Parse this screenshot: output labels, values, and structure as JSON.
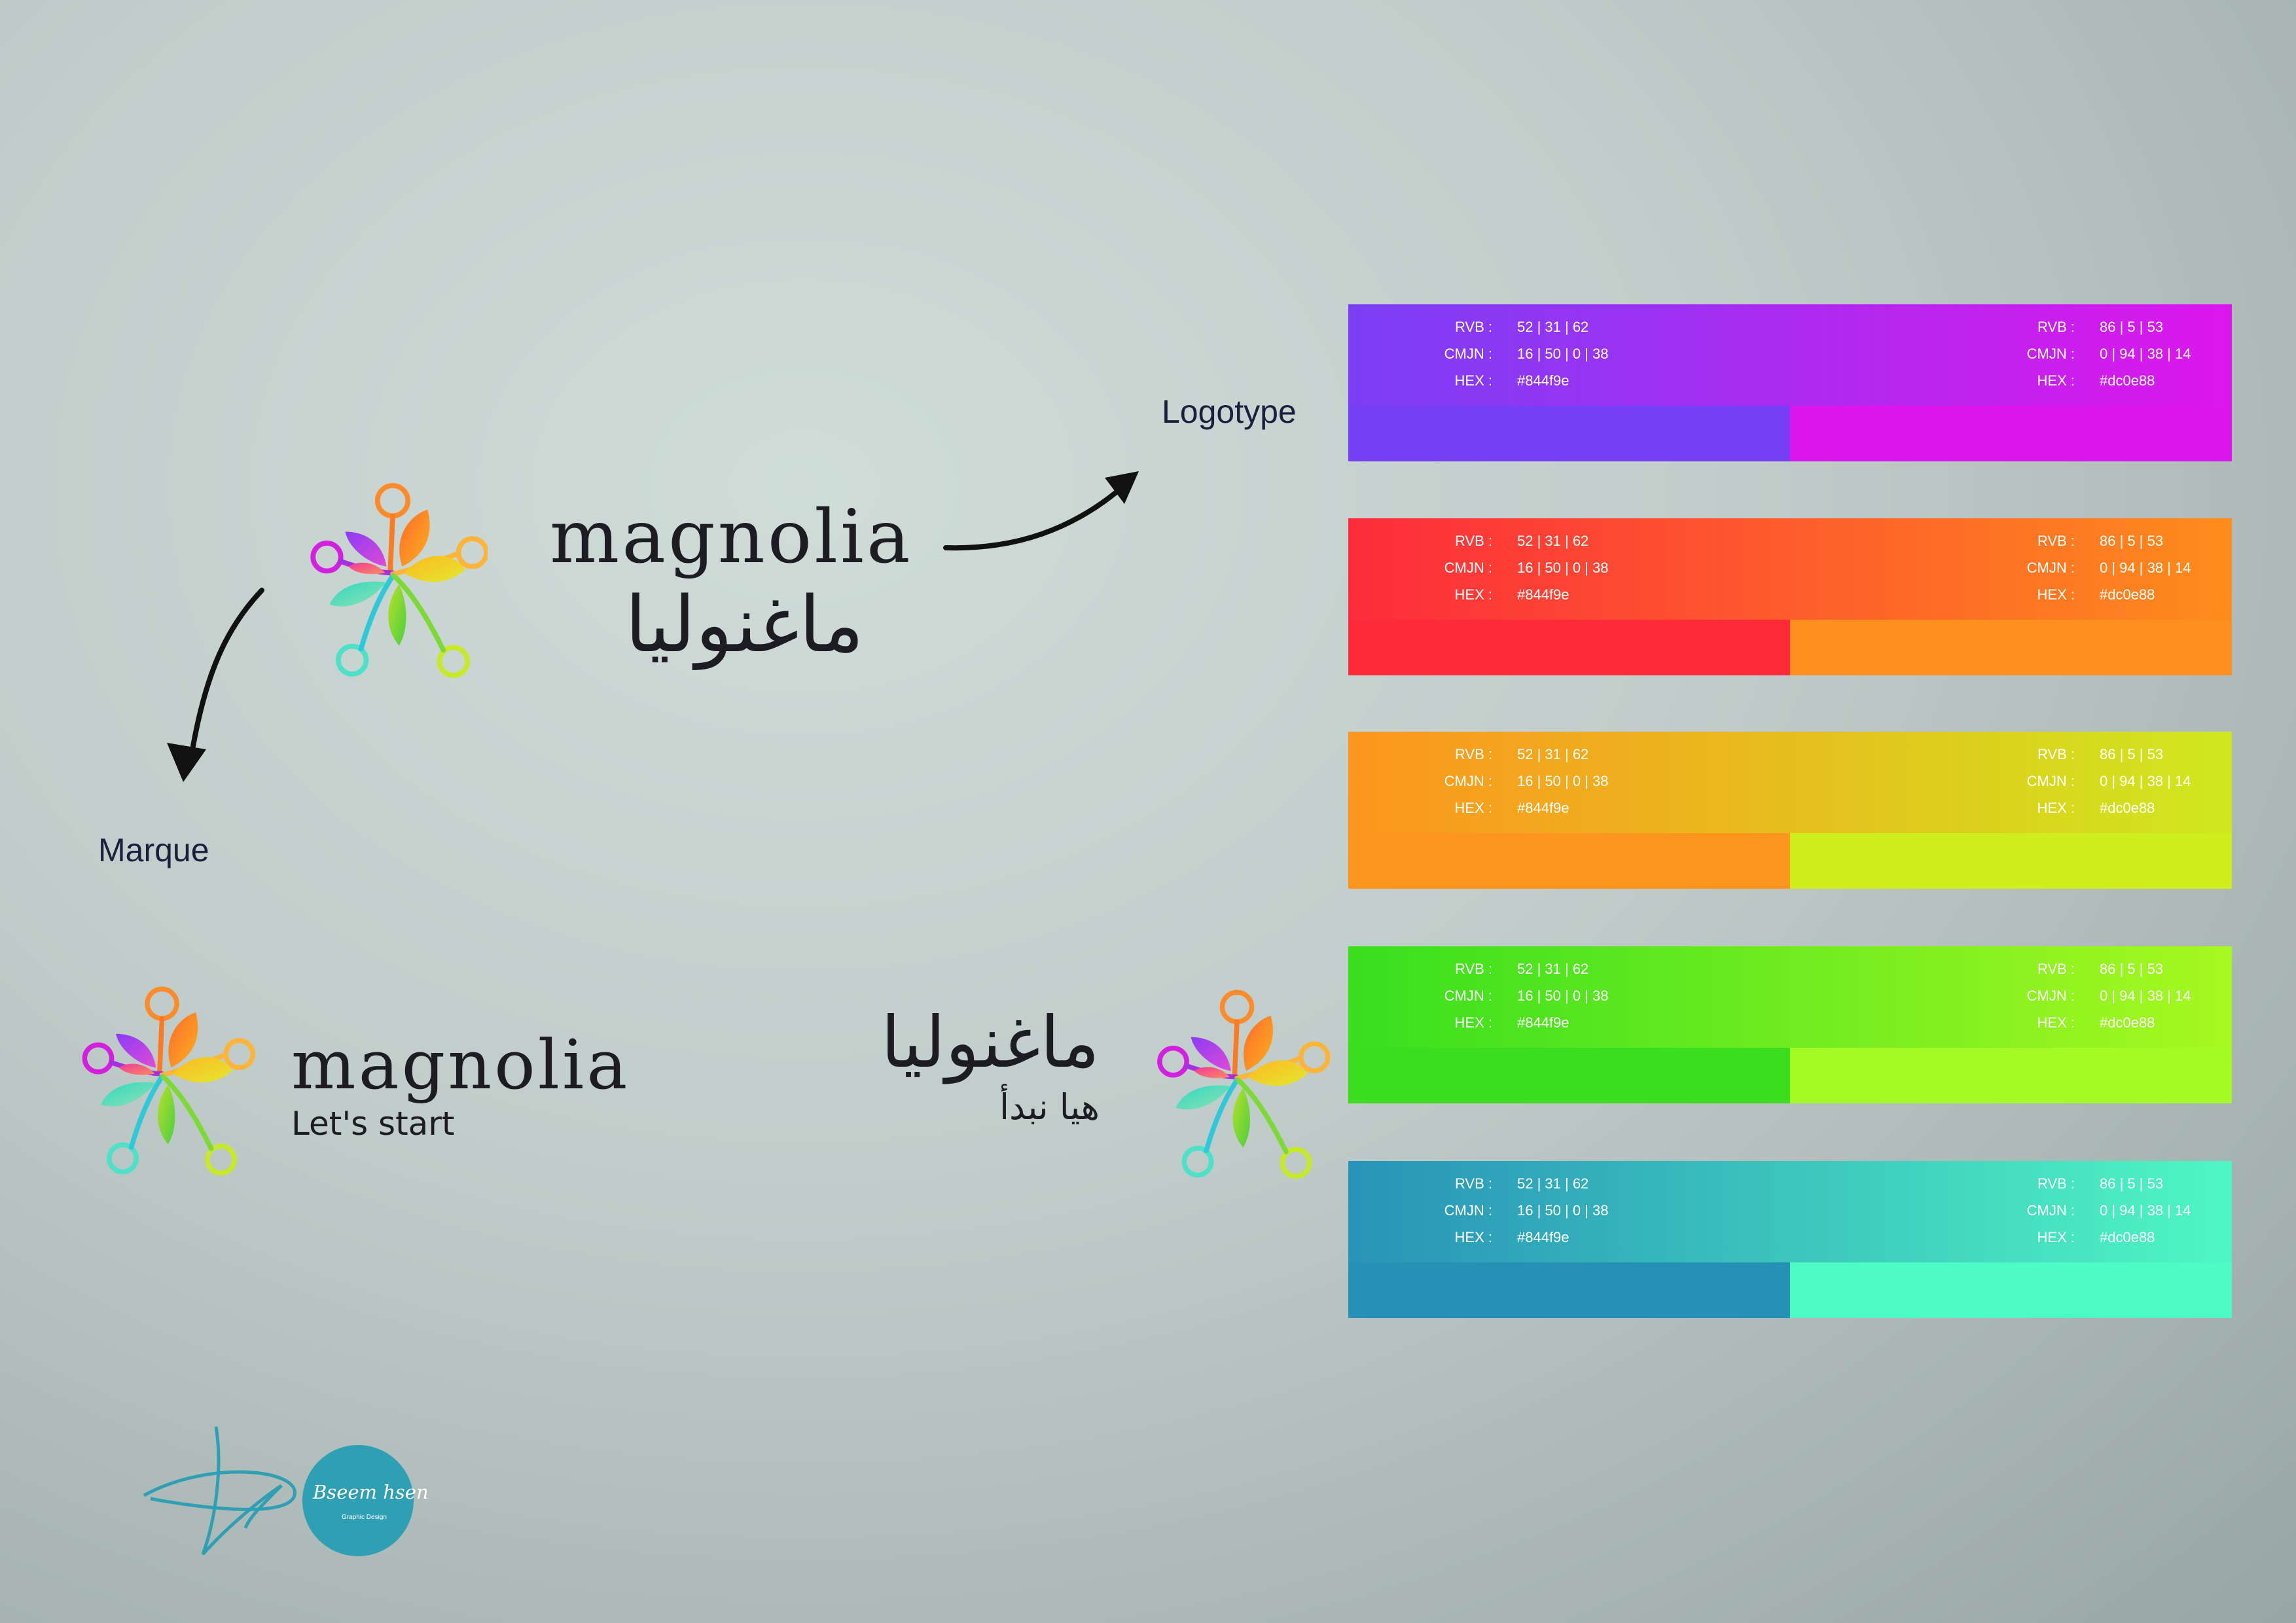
{
  "logotype_label": "Logotype",
  "marque_label": "Marque",
  "logo_main": {
    "latin": "magnolia",
    "arabic": "ماغنوليا"
  },
  "logo_horizontal": {
    "latin": "magnolia",
    "tagline": "Let's start"
  },
  "logo_arabic": {
    "arabic": "ماغنوليا",
    "tagline": "هيا نبدأ"
  },
  "palettes": [
    {
      "gradient": [
        "#7b3ff4",
        "#dd17ec"
      ],
      "left": {
        "rvb_label": "RVB :",
        "rvb": "52 | 31 | 62",
        "cmjn_label": "CMJN :",
        "cmjn": "16 | 50 | 0 | 38",
        "hex_label": "HEX :",
        "hex": "#844f9e",
        "swatch": "#763ef5"
      },
      "right": {
        "rvb_label": "RVB :",
        "rvb": "86 | 5 | 53",
        "cmjn_label": "CMJN :",
        "cmjn": "0 | 94 | 38 | 14",
        "hex_label": "HEX :",
        "hex": "#dc0e88",
        "swatch": "#dd17ec"
      }
    },
    {
      "gradient": [
        "#fd2c3c",
        "#fe8c1c"
      ],
      "left": {
        "rvb_label": "RVB :",
        "rvb": "52 | 31 | 62",
        "cmjn_label": "CMJN :",
        "cmjn": "16 | 50 | 0 | 38",
        "hex_label": "HEX :",
        "hex": "#844f9e",
        "swatch": "#fd2a3a"
      },
      "right": {
        "rvb_label": "RVB :",
        "rvb": "86 | 5 | 53",
        "cmjn_label": "CMJN :",
        "cmjn": "0 | 94 | 38 | 14",
        "hex_label": "HEX :",
        "hex": "#dc0e88",
        "swatch": "#fd8f1e"
      }
    },
    {
      "gradient": [
        "#fd951e",
        "#cfe81e"
      ],
      "left": {
        "rvb_label": "RVB :",
        "rvb": "52 | 31 | 62",
        "cmjn_label": "CMJN :",
        "cmjn": "16 | 50 | 0 | 38",
        "hex_label": "HEX :",
        "hex": "#844f9e",
        "swatch": "#fd951e"
      },
      "right": {
        "rvb_label": "RVB :",
        "rvb": "86 | 5 | 53",
        "cmjn_label": "CMJN :",
        "cmjn": "0 | 94 | 38 | 14",
        "hex_label": "HEX :",
        "hex": "#dc0e88",
        "swatch": "#ceee1d"
      }
    },
    {
      "gradient": [
        "#38df1f",
        "#a7f820"
      ],
      "left": {
        "rvb_label": "RVB :",
        "rvb": "52 | 31 | 62",
        "cmjn_label": "CMJN :",
        "cmjn": "16 | 50 | 0 | 38",
        "hex_label": "HEX :",
        "hex": "#844f9e",
        "swatch": "#3ade1e"
      },
      "right": {
        "rvb_label": "RVB :",
        "rvb": "86 | 5 | 53",
        "cmjn_label": "CMJN :",
        "cmjn": "0 | 94 | 38 | 14",
        "hex_label": "HEX :",
        "hex": "#dc0e88",
        "swatch": "#a3fa24"
      }
    },
    {
      "gradient": [
        "#2993b8",
        "#4ff7c3"
      ],
      "left": {
        "rvb_label": "RVB :",
        "rvb": "52 | 31 | 62",
        "cmjn_label": "CMJN :",
        "cmjn": "16 | 50 | 0 | 38",
        "hex_label": "HEX :",
        "hex": "#844f9e",
        "swatch": "#2790b5"
      },
      "right": {
        "rvb_label": "RVB :",
        "rvb": "86 | 5 | 53",
        "cmjn_label": "CMJN :",
        "cmjn": "0 | 94 | 38 | 14",
        "hex_label": "HEX :",
        "hex": "#dc0e88",
        "swatch": "#4cfcc4"
      }
    }
  ],
  "signature": {
    "name": "Bseem hsen",
    "sub": "Graphic Design",
    "color": "#2f9fb4"
  }
}
